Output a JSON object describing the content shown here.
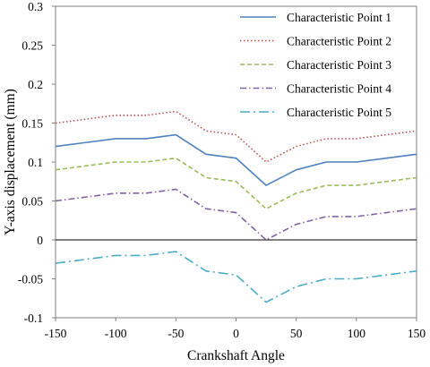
{
  "chart_data": {
    "type": "line",
    "title": "",
    "xlabel": "Crankshaft Angle",
    "ylabel": "Y-axis displacement (mm)",
    "xlim": [
      -150,
      150
    ],
    "ylim": [
      -0.1,
      0.3
    ],
    "xticks": [
      -150,
      -100,
      -50,
      0,
      50,
      100,
      150
    ],
    "yticks": [
      -0.1,
      -0.05,
      0,
      0.05,
      0.1,
      0.15,
      0.2,
      0.25,
      0.3
    ],
    "xtick_labels": [
      "-150",
      "-100",
      "-50",
      "0",
      "50",
      "100",
      "150"
    ],
    "ytick_labels": [
      "-0.1",
      "-0.05",
      "0",
      "0.05",
      "0.1",
      "0.15",
      "0.2",
      "0.25",
      "0.3"
    ],
    "grid": false,
    "legend_position": "top-right",
    "x": [
      -150,
      -125,
      -100,
      -75,
      -50,
      -25,
      0,
      25,
      50,
      75,
      100,
      125,
      150
    ],
    "series": [
      {
        "name": "Characteristic Point 1",
        "color": "#4f81bd",
        "dash": "solid",
        "values": [
          0.12,
          0.125,
          0.13,
          0.13,
          0.135,
          0.11,
          0.105,
          0.07,
          0.09,
          0.1,
          0.1,
          0.105,
          0.11
        ]
      },
      {
        "name": "Characteristic Point 2",
        "color": "#c0504d",
        "dash": "dotted",
        "values": [
          0.15,
          0.155,
          0.16,
          0.16,
          0.165,
          0.14,
          0.135,
          0.1,
          0.12,
          0.13,
          0.13,
          0.135,
          0.14
        ]
      },
      {
        "name": "Characteristic Point 3",
        "color": "#9bbb59",
        "dash": "dashed",
        "values": [
          0.09,
          0.095,
          0.1,
          0.1,
          0.105,
          0.08,
          0.075,
          0.04,
          0.06,
          0.07,
          0.07,
          0.075,
          0.08
        ]
      },
      {
        "name": "Characteristic Point 4",
        "color": "#8064a2",
        "dash": "dash-dot",
        "values": [
          0.05,
          0.055,
          0.06,
          0.06,
          0.065,
          0.04,
          0.035,
          0.0,
          0.02,
          0.03,
          0.03,
          0.035,
          0.04
        ]
      },
      {
        "name": "Characteristic Point 5",
        "color": "#4bacc6",
        "dash": "long-dash-dot",
        "values": [
          -0.03,
          -0.025,
          -0.02,
          -0.02,
          -0.015,
          -0.04,
          -0.045,
          -0.08,
          -0.06,
          -0.05,
          -0.05,
          -0.045,
          -0.04
        ]
      }
    ]
  }
}
